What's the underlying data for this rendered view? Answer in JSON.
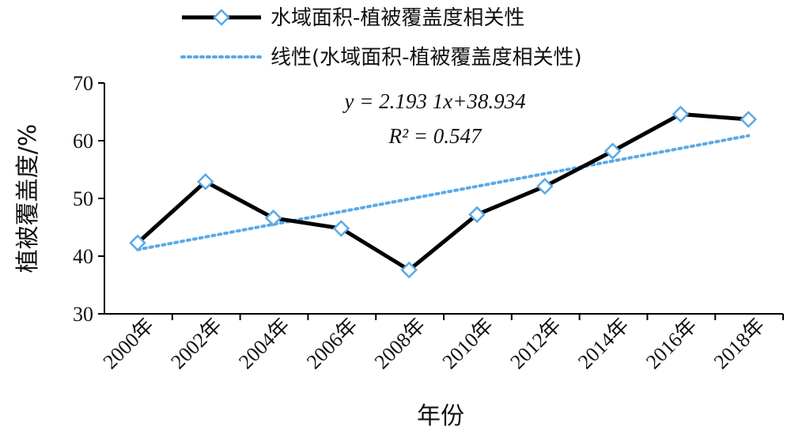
{
  "chart_data": {
    "type": "line",
    "categories": [
      "2000年",
      "2002年",
      "2004年",
      "2006年",
      "2008年",
      "2010年",
      "2012年",
      "2014年",
      "2016年",
      "2018年"
    ],
    "series": [
      {
        "name": "水域面积-植被覆盖度相关性",
        "values": [
          42.3,
          52.9,
          46.6,
          44.8,
          37.6,
          47.2,
          52.1,
          58.2,
          64.6,
          63.7
        ],
        "color": "#000000",
        "marker_color": "#5aa9e6",
        "marker": "diamond"
      },
      {
        "name": "线性(水域面积-植被覆盖度相关性)",
        "kind": "trendline",
        "slope": 2.1931,
        "intercept": 38.934,
        "color": "#5aa9e6",
        "style": "dotted"
      }
    ],
    "xlabel": "年份",
    "ylabel": "植被覆盖度/%",
    "ylim": [
      30,
      70
    ],
    "yticks": [
      "30",
      "40",
      "50",
      "60",
      "70"
    ],
    "grid": false,
    "legend": "top",
    "annotations": {
      "equation": "y = 2.193 1x+38.934",
      "r2": "R² = 0.547"
    }
  }
}
